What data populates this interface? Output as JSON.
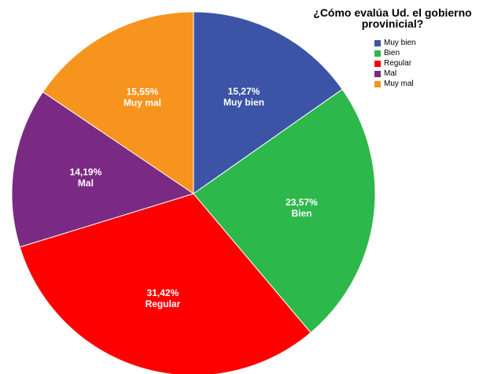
{
  "chart_data": {
    "type": "pie",
    "title": "¿Cómo evalúa Ud. el gobierno provinicial?",
    "title_lines": [
      "¿Cómo evalúa Ud. el gobierno",
      "provinicial?"
    ],
    "categories": [
      "Muy bien",
      "Bien",
      "Regular",
      "Mal",
      "Muy mal"
    ],
    "values": [
      15.27,
      23.57,
      31.42,
      14.19,
      15.55
    ],
    "value_labels": [
      "15,27%",
      "23,57%",
      "31,42%",
      "14,19%",
      "15,55%"
    ],
    "colors": [
      "#3b54a5",
      "#2db84b",
      "#ff0000",
      "#7b2a83",
      "#f7941d"
    ],
    "legend_position": "top-right",
    "start": "top-clockwise"
  }
}
